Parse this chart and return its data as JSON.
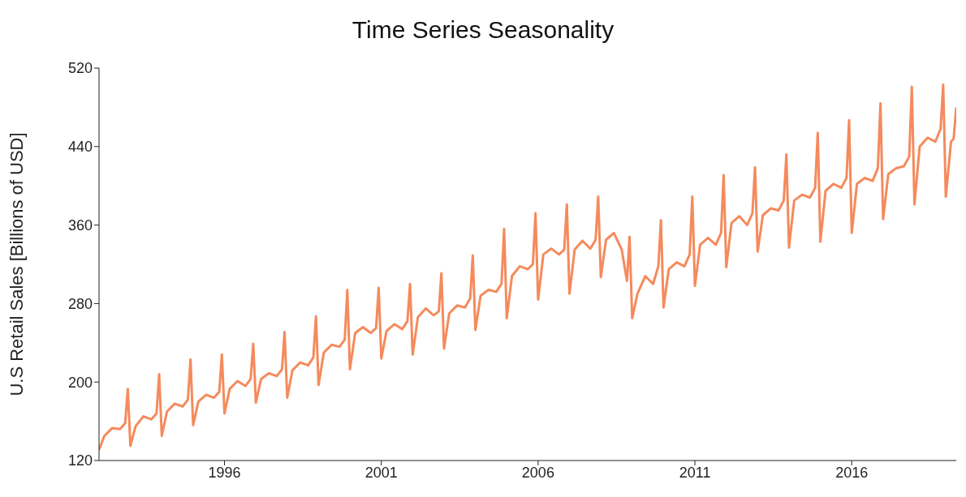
{
  "chart_data": {
    "type": "line",
    "title": "Time Series Seasonality",
    "ylabel": "U.S Retail Sales [Billions of USD]",
    "x": [
      "1992-01",
      "1992-03",
      "1992-06",
      "1992-09",
      "1992-11",
      "1992-12",
      "1993-01",
      "1993-03",
      "1993-06",
      "1993-09",
      "1993-11",
      "1993-12",
      "1994-01",
      "1994-03",
      "1994-06",
      "1994-09",
      "1994-11",
      "1994-12",
      "1995-01",
      "1995-03",
      "1995-06",
      "1995-09",
      "1995-11",
      "1995-12",
      "1996-01",
      "1996-03",
      "1996-06",
      "1996-09",
      "1996-11",
      "1996-12",
      "1997-01",
      "1997-03",
      "1997-06",
      "1997-09",
      "1997-11",
      "1997-12",
      "1998-01",
      "1998-03",
      "1998-06",
      "1998-09",
      "1998-11",
      "1998-12",
      "1999-01",
      "1999-03",
      "1999-06",
      "1999-09",
      "1999-11",
      "1999-12",
      "2000-01",
      "2000-03",
      "2000-06",
      "2000-09",
      "2000-11",
      "2000-12",
      "2001-01",
      "2001-03",
      "2001-06",
      "2001-09",
      "2001-11",
      "2001-12",
      "2002-01",
      "2002-03",
      "2002-06",
      "2002-09",
      "2002-11",
      "2002-12",
      "2003-01",
      "2003-03",
      "2003-06",
      "2003-09",
      "2003-11",
      "2003-12",
      "2004-01",
      "2004-03",
      "2004-06",
      "2004-09",
      "2004-11",
      "2004-12",
      "2005-01",
      "2005-03",
      "2005-06",
      "2005-09",
      "2005-11",
      "2005-12",
      "2006-01",
      "2006-03",
      "2006-06",
      "2006-09",
      "2006-11",
      "2006-12",
      "2007-01",
      "2007-03",
      "2007-06",
      "2007-09",
      "2007-11",
      "2007-12",
      "2008-01",
      "2008-03",
      "2008-06",
      "2008-09",
      "2008-11",
      "2008-12",
      "2009-01",
      "2009-03",
      "2009-06",
      "2009-09",
      "2009-11",
      "2009-12",
      "2010-01",
      "2010-03",
      "2010-06",
      "2010-09",
      "2010-11",
      "2010-12",
      "2011-01",
      "2011-03",
      "2011-06",
      "2011-09",
      "2011-11",
      "2011-12",
      "2012-01",
      "2012-03",
      "2012-06",
      "2012-09",
      "2012-11",
      "2012-12",
      "2013-01",
      "2013-03",
      "2013-06",
      "2013-09",
      "2013-11",
      "2013-12",
      "2014-01",
      "2014-03",
      "2014-06",
      "2014-09",
      "2014-11",
      "2014-12",
      "2015-01",
      "2015-03",
      "2015-06",
      "2015-09",
      "2015-11",
      "2015-12",
      "2016-01",
      "2016-03",
      "2016-06",
      "2016-09",
      "2016-11",
      "2016-12",
      "2017-01",
      "2017-03",
      "2017-06",
      "2017-09",
      "2017-11",
      "2017-12",
      "2018-01",
      "2018-03",
      "2018-06",
      "2018-09",
      "2018-11",
      "2018-12",
      "2019-01",
      "2019-03",
      "2019-04",
      "2019-05"
    ],
    "series": [
      {
        "color": "#f58a5c",
        "values": [
          131,
          145,
          153,
          152,
          158,
          193,
          135,
          155,
          165,
          162,
          168,
          208,
          145,
          170,
          178,
          175,
          182,
          223,
          156,
          180,
          187,
          184,
          190,
          228,
          168,
          193,
          201,
          196,
          203,
          239,
          179,
          203,
          209,
          206,
          213,
          251,
          184,
          212,
          220,
          217,
          225,
          267,
          197,
          230,
          238,
          236,
          243,
          294,
          213,
          250,
          256,
          250,
          255,
          296,
          224,
          252,
          259,
          254,
          262,
          300,
          228,
          266,
          275,
          268,
          272,
          311,
          234,
          270,
          278,
          276,
          285,
          329,
          253,
          288,
          294,
          292,
          300,
          356,
          265,
          308,
          318,
          315,
          320,
          372,
          284,
          330,
          336,
          330,
          335,
          381,
          290,
          335,
          344,
          336,
          345,
          389,
          307,
          345,
          352,
          335,
          303,
          348,
          265,
          290,
          308,
          300,
          318,
          365,
          276,
          315,
          322,
          318,
          330,
          389,
          298,
          340,
          347,
          340,
          352,
          411,
          317,
          362,
          369,
          360,
          372,
          419,
          333,
          370,
          377,
          375,
          385,
          432,
          337,
          385,
          391,
          388,
          398,
          454,
          343,
          395,
          402,
          398,
          408,
          467,
          352,
          402,
          408,
          405,
          418,
          484,
          366,
          412,
          418,
          420,
          430,
          501,
          381,
          440,
          449,
          445,
          458,
          503,
          389,
          445,
          448,
          480
        ]
      }
    ],
    "xlim": [
      "1992-01",
      "2019-05"
    ],
    "xticks": [
      "1996",
      "2001",
      "2006",
      "2011",
      "2016"
    ],
    "ylim": [
      120,
      520
    ],
    "yticks": [
      120,
      200,
      280,
      360,
      440,
      520
    ],
    "grid": false,
    "legend": false,
    "marker": "none",
    "line_style": "solid"
  }
}
